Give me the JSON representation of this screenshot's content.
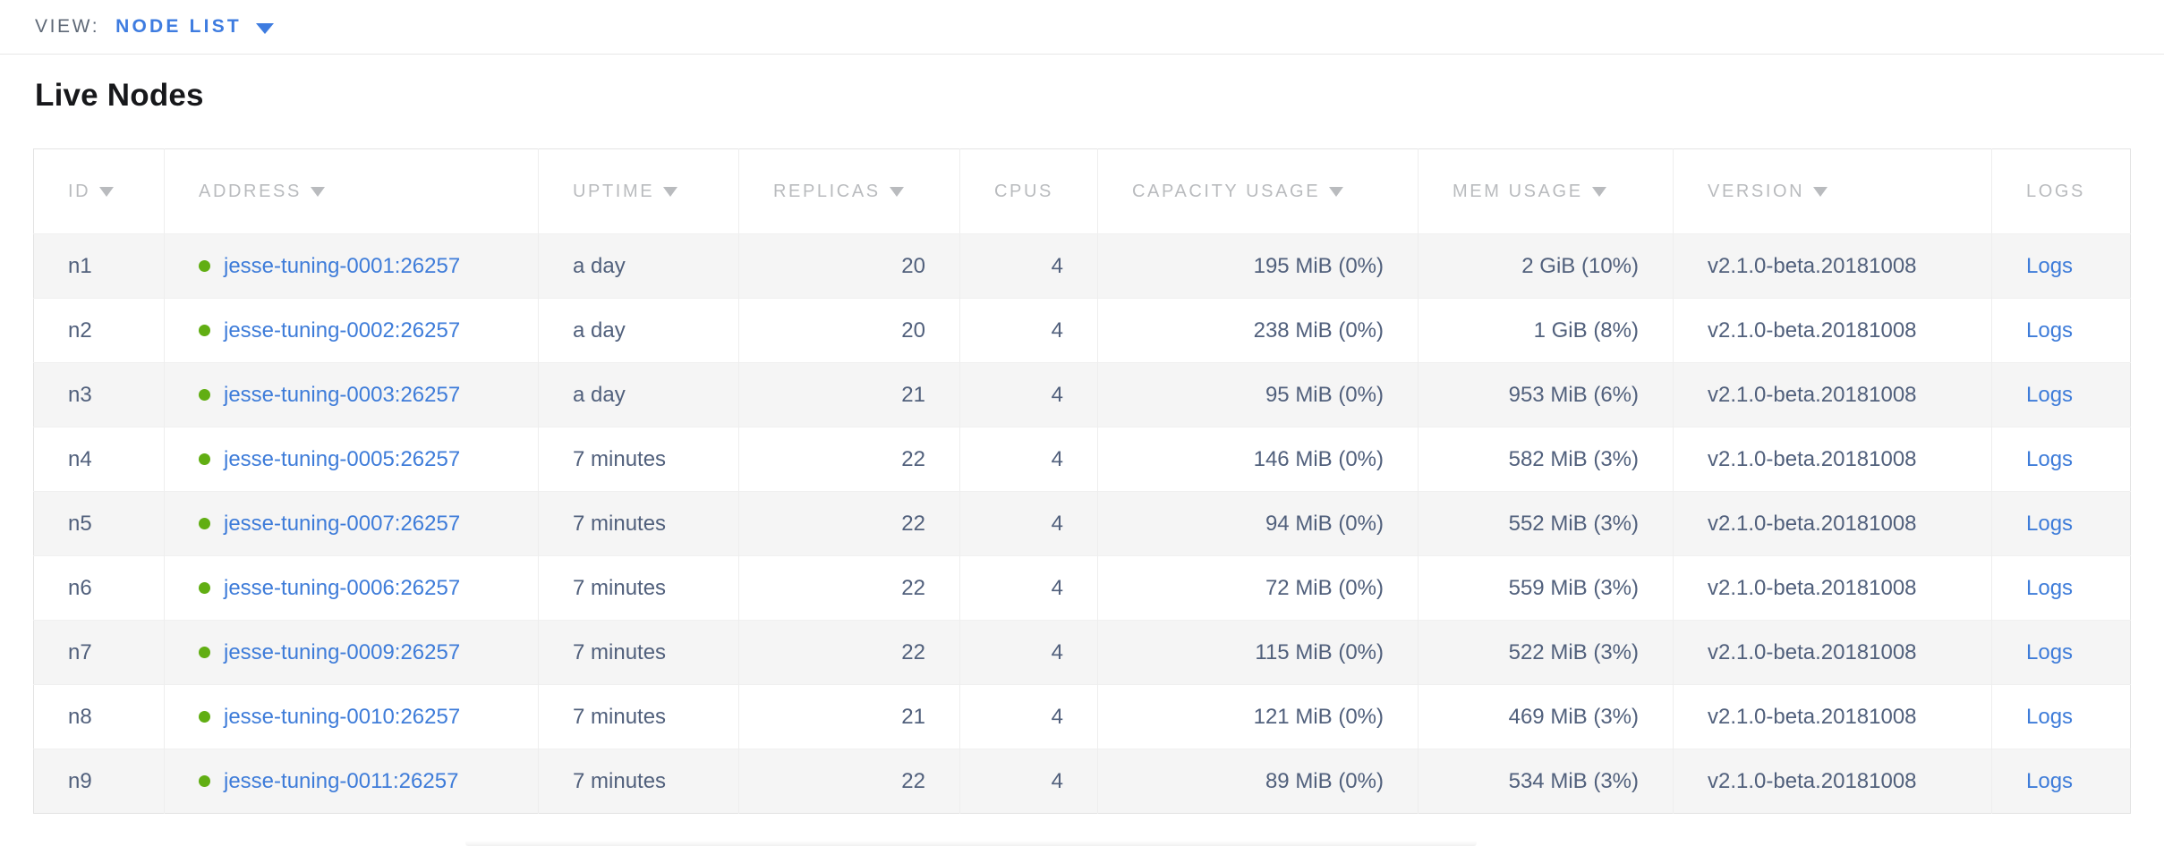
{
  "view_bar": {
    "label": "VIEW:",
    "selected": "NODE LIST"
  },
  "page": {
    "title": "Live Nodes"
  },
  "colors": {
    "accent_blue": "#3e7ce0",
    "link_blue": "#3e7cd9",
    "status_green": "#61ae13",
    "header_gray": "#b9bbbe",
    "cell_text": "#51607c"
  },
  "table": {
    "columns": [
      {
        "key": "id",
        "label": "ID",
        "sortable": true
      },
      {
        "key": "address",
        "label": "ADDRESS",
        "sortable": true
      },
      {
        "key": "uptime",
        "label": "UPTIME",
        "sortable": true
      },
      {
        "key": "replicas",
        "label": "REPLICAS",
        "sortable": true
      },
      {
        "key": "cpus",
        "label": "CPUS",
        "sortable": false
      },
      {
        "key": "capacity_usage",
        "label": "CAPACITY USAGE",
        "sortable": true
      },
      {
        "key": "mem_usage",
        "label": "MEM USAGE",
        "sortable": true
      },
      {
        "key": "version",
        "label": "VERSION",
        "sortable": true
      },
      {
        "key": "logs",
        "label": "LOGS",
        "sortable": false
      }
    ],
    "rows": [
      {
        "id": "n1",
        "address": "jesse-tuning-0001:26257",
        "status": "live",
        "uptime": "a day",
        "replicas": "20",
        "cpus": "4",
        "capacity_usage": "195 MiB (0%)",
        "mem_usage": "2 GiB (10%)",
        "version": "v2.1.0-beta.20181008",
        "logs": "Logs"
      },
      {
        "id": "n2",
        "address": "jesse-tuning-0002:26257",
        "status": "live",
        "uptime": "a day",
        "replicas": "20",
        "cpus": "4",
        "capacity_usage": "238 MiB (0%)",
        "mem_usage": "1 GiB (8%)",
        "version": "v2.1.0-beta.20181008",
        "logs": "Logs"
      },
      {
        "id": "n3",
        "address": "jesse-tuning-0003:26257",
        "status": "live",
        "uptime": "a day",
        "replicas": "21",
        "cpus": "4",
        "capacity_usage": "95 MiB (0%)",
        "mem_usage": "953 MiB (6%)",
        "version": "v2.1.0-beta.20181008",
        "logs": "Logs"
      },
      {
        "id": "n4",
        "address": "jesse-tuning-0005:26257",
        "status": "live",
        "uptime": "7 minutes",
        "replicas": "22",
        "cpus": "4",
        "capacity_usage": "146 MiB (0%)",
        "mem_usage": "582 MiB (3%)",
        "version": "v2.1.0-beta.20181008",
        "logs": "Logs"
      },
      {
        "id": "n5",
        "address": "jesse-tuning-0007:26257",
        "status": "live",
        "uptime": "7 minutes",
        "replicas": "22",
        "cpus": "4",
        "capacity_usage": "94 MiB (0%)",
        "mem_usage": "552 MiB (3%)",
        "version": "v2.1.0-beta.20181008",
        "logs": "Logs"
      },
      {
        "id": "n6",
        "address": "jesse-tuning-0006:26257",
        "status": "live",
        "uptime": "7 minutes",
        "replicas": "22",
        "cpus": "4",
        "capacity_usage": "72 MiB (0%)",
        "mem_usage": "559 MiB (3%)",
        "version": "v2.1.0-beta.20181008",
        "logs": "Logs"
      },
      {
        "id": "n7",
        "address": "jesse-tuning-0009:26257",
        "status": "live",
        "uptime": "7 minutes",
        "replicas": "22",
        "cpus": "4",
        "capacity_usage": "115 MiB (0%)",
        "mem_usage": "522 MiB (3%)",
        "version": "v2.1.0-beta.20181008",
        "logs": "Logs"
      },
      {
        "id": "n8",
        "address": "jesse-tuning-0010:26257",
        "status": "live",
        "uptime": "7 minutes",
        "replicas": "21",
        "cpus": "4",
        "capacity_usage": "121 MiB (0%)",
        "mem_usage": "469 MiB (3%)",
        "version": "v2.1.0-beta.20181008",
        "logs": "Logs"
      },
      {
        "id": "n9",
        "address": "jesse-tuning-0011:26257",
        "status": "live",
        "uptime": "7 minutes",
        "replicas": "22",
        "cpus": "4",
        "capacity_usage": "89 MiB (0%)",
        "mem_usage": "534 MiB (3%)",
        "version": "v2.1.0-beta.20181008",
        "logs": "Logs"
      }
    ]
  }
}
